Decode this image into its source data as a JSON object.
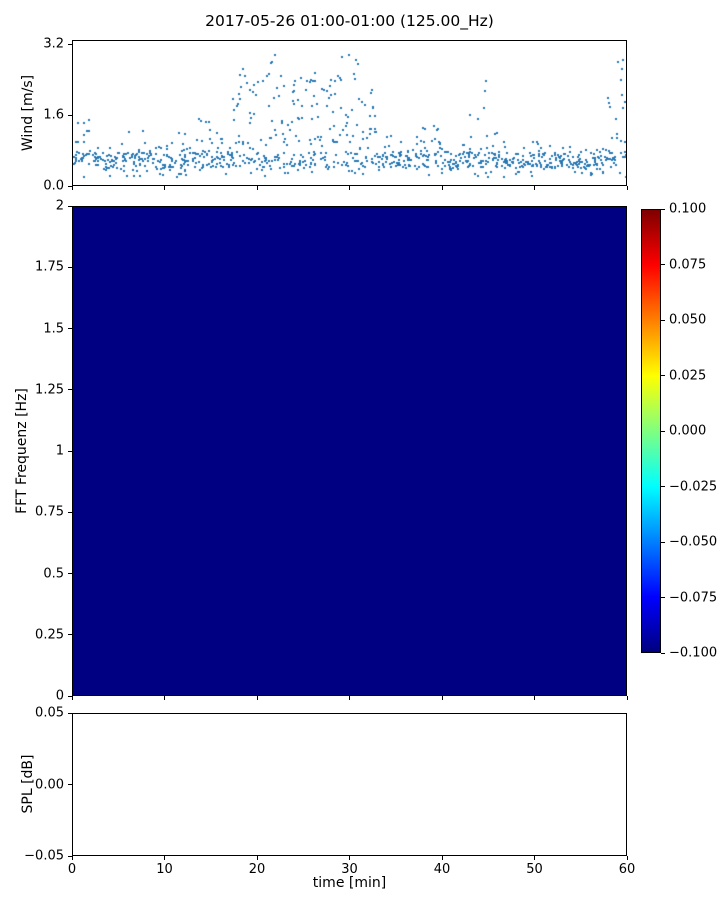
{
  "figure": {
    "title": "2017-05-26 01:00-01:00 (125.00_Hz)"
  },
  "chart_data": [
    {
      "type": "scatter",
      "title": "2017-05-26 01:00-01:00 (125.00_Hz)",
      "ylabel": "Wind [m/s]",
      "xlabel": "",
      "xlim": [
        0,
        60
      ],
      "ylim": [
        0,
        3.3
      ],
      "ytick_values": [
        0.0,
        1.6,
        3.2
      ],
      "ytick_labels": [
        "0.0",
        "1.6",
        "3.2"
      ],
      "marker_color": "#2878b5",
      "points_per_minute": 16,
      "minute_profile": {
        "comment": "per-minute wind speed envelope read from plot, minutes 0-59",
        "mean": [
          0.8,
          0.9,
          0.7,
          0.5,
          0.5,
          0.7,
          0.8,
          0.8,
          0.6,
          0.5,
          0.6,
          0.7,
          0.8,
          0.9,
          1.0,
          0.7,
          0.6,
          0.9,
          1.2,
          1.1,
          1.2,
          1.4,
          1.3,
          1.2,
          1.3,
          1.2,
          1.3,
          1.2,
          1.3,
          1.4,
          1.2,
          1.1,
          1.2,
          0.9,
          0.7,
          0.6,
          0.6,
          0.8,
          0.9,
          0.8,
          0.5,
          0.5,
          0.7,
          0.9,
          1.0,
          0.8,
          0.7,
          0.6,
          0.5,
          0.6,
          0.6,
          0.5,
          0.5,
          0.6,
          0.6,
          0.5,
          0.6,
          0.8,
          1.0,
          1.3
        ],
        "max": [
          1.5,
          1.6,
          1.2,
          0.8,
          0.9,
          1.2,
          1.4,
          1.3,
          1.0,
          0.9,
          1.1,
          1.2,
          1.4,
          1.6,
          1.7,
          1.2,
          1.1,
          2.0,
          2.7,
          2.3,
          2.4,
          3.0,
          2.5,
          2.3,
          2.5,
          2.4,
          2.6,
          2.3,
          2.5,
          3.0,
          2.9,
          2.0,
          2.2,
          1.6,
          1.2,
          1.0,
          1.1,
          1.4,
          1.6,
          1.5,
          0.9,
          0.8,
          1.3,
          1.8,
          2.4,
          1.5,
          1.3,
          1.0,
          0.9,
          1.0,
          1.1,
          0.9,
          0.8,
          1.0,
          1.0,
          0.9,
          1.1,
          1.5,
          2.0,
          2.9
        ]
      }
    },
    {
      "type": "heatmap",
      "ylabel": "FFT Frequenz [Hz]",
      "xlim": [
        0,
        60
      ],
      "ylim": [
        0,
        2
      ],
      "ytick_values": [
        0,
        0.25,
        0.5,
        0.75,
        1,
        1.25,
        1.5,
        1.75,
        2
      ],
      "ytick_labels": [
        "0",
        "0.25",
        "0.5",
        "0.75",
        "1",
        "1.25",
        "1.5",
        "1.75",
        "2"
      ],
      "uniform_value": -0.1,
      "fill_color": "#000082",
      "colorbar": {
        "vmin": -0.1,
        "vmax": 0.1,
        "colormap": "jet",
        "tick_labels": [
          "0.100",
          "0.075",
          "0.050",
          "0.025",
          "0.000",
          "−0.025",
          "−0.050",
          "−0.075",
          "−0.100"
        ],
        "gradient_bottom_to_top": [
          "#00007f",
          "#0000ff",
          "#0080ff",
          "#00ffff",
          "#80ff80",
          "#ffff00",
          "#ff8000",
          "#ff0000",
          "#7f0000"
        ]
      }
    },
    {
      "type": "line",
      "ylabel": "SPL [dB]",
      "xlabel": "time [min]",
      "xlim": [
        0,
        60
      ],
      "ylim": [
        -0.05,
        0.05
      ],
      "ytick_values": [
        0.05,
        0.0,
        -0.05
      ],
      "ytick_labels": [
        "0.05",
        "0.00",
        "−0.05"
      ],
      "xtick_values": [
        0,
        10,
        20,
        30,
        40,
        50,
        60
      ],
      "xtick_labels": [
        "0",
        "10",
        "20",
        "30",
        "40",
        "50",
        "60"
      ],
      "values": []
    }
  ]
}
